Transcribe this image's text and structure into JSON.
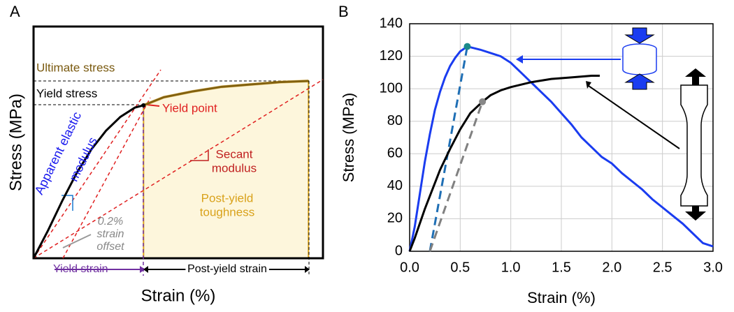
{
  "chart_data": [
    {
      "type": "line",
      "title": "A",
      "x_label": "Strain (%)",
      "y_label": "Stress (MPa)",
      "xlim": [
        0,
        1
      ],
      "ylim": [
        0,
        1
      ],
      "series": [
        {
          "color": "#000000",
          "x": [
            0,
            0.05,
            0.1,
            0.15,
            0.2,
            0.25,
            0.3,
            0.35,
            0.38,
            0.45,
            0.55,
            0.65,
            0.75,
            0.85,
            0.95
          ],
          "values": [
            0,
            0.12,
            0.25,
            0.37,
            0.47,
            0.55,
            0.61,
            0.65,
            0.66,
            0.695,
            0.72,
            0.74,
            0.75,
            0.76,
            0.765
          ]
        }
      ],
      "annotations": {
        "ultimate": "Ultimate stress",
        "yield_stress": "Yield stress",
        "yield_point": "Yield point",
        "elastic": [
          "Apparent elastic",
          "modulus"
        ],
        "secant": [
          "Secant",
          "modulus"
        ],
        "toughness": [
          "Post-yield",
          "toughness"
        ],
        "offset": [
          "0.2%",
          "strain",
          "offset"
        ],
        "yield_strain": "Yield strain",
        "post_yield_strain": "Post-yield strain"
      }
    },
    {
      "type": "line",
      "title": "B",
      "x_label": "Strain (%)",
      "y_label": "Stress (MPa)",
      "xlim": [
        0,
        3
      ],
      "ylim": [
        0,
        140
      ],
      "grid": true,
      "xticks": [
        {
          "value": 0,
          "label": "0.0"
        },
        0.5,
        {
          "value": 1,
          "label": "1.0"
        },
        1.5,
        {
          "value": 2,
          "label": "2.0"
        },
        2.5,
        {
          "value": 3,
          "label": "3.0"
        }
      ],
      "yticks": [
        0,
        20,
        40,
        60,
        80,
        100,
        120,
        140
      ],
      "offset_x": 0.2,
      "series": [
        {
          "color": "#1a3cf0",
          "x": [
            0,
            0.05,
            0.1,
            0.15,
            0.2,
            0.25,
            0.3,
            0.35,
            0.4,
            0.45,
            0.5,
            0.57,
            0.7,
            0.8,
            0.9,
            1.0,
            1.1,
            1.2,
            1.3,
            1.4,
            1.5,
            1.6,
            1.7,
            1.8,
            1.9,
            2.0,
            2.1,
            2.2,
            2.3,
            2.4,
            2.5,
            2.6,
            2.7,
            2.8,
            2.9,
            3.0
          ],
          "values": [
            0,
            15,
            35,
            55,
            72,
            87,
            98,
            107,
            114,
            119,
            123,
            126,
            124,
            122,
            120,
            116,
            110,
            104,
            98,
            92,
            85,
            78,
            70,
            64,
            58,
            54,
            48,
            43,
            38,
            32,
            27,
            22,
            17,
            11,
            5,
            3
          ]
        },
        {
          "color": "#000000",
          "x": [
            0,
            0.05,
            0.1,
            0.15,
            0.2,
            0.3,
            0.4,
            0.5,
            0.6,
            0.72,
            0.8,
            0.9,
            1.0,
            1.2,
            1.4,
            1.6,
            1.8,
            1.88
          ],
          "values": [
            0,
            8,
            17,
            26,
            34,
            50,
            63,
            75,
            85,
            92,
            96,
            99,
            101,
            104,
            106,
            107,
            108,
            108
          ]
        }
      ],
      "points": [
        {
          "x": 0.57,
          "y": 126,
          "color": "#1a8a8a",
          "line_color": "#1f6fb5"
        },
        {
          "x": 0.72,
          "y": 92,
          "color": "#888888",
          "line_color": "#808080"
        }
      ]
    }
  ]
}
